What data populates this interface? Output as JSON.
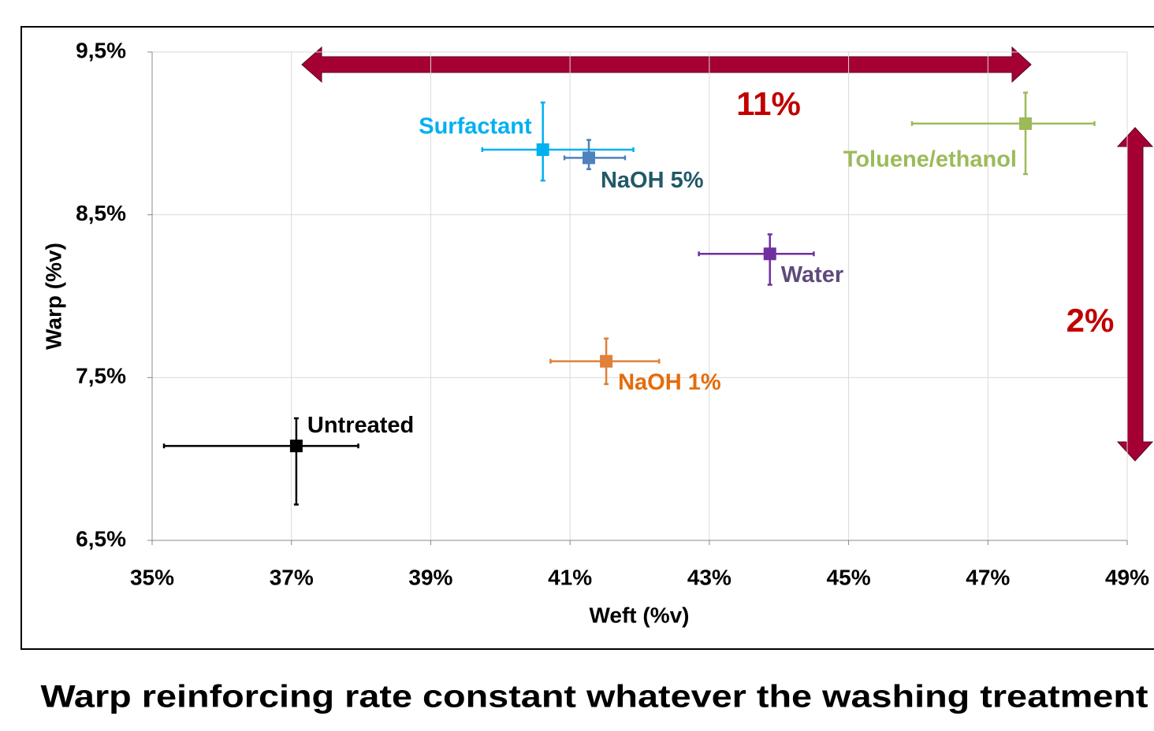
{
  "chart_data": {
    "type": "scatter",
    "title": "Warp reinforcing rate constant whatever the washing treatment",
    "x_label": "Weft (%v)",
    "y_label": "Warp (%v)",
    "xlim": [
      35,
      49
    ],
    "ylim": [
      6.5,
      9.5
    ],
    "xticks": [
      {
        "value": 35,
        "label": "35%"
      },
      {
        "value": 37,
        "label": "37%"
      },
      {
        "value": 39,
        "label": "39%"
      },
      {
        "value": 41,
        "label": "41%"
      },
      {
        "value": 43,
        "label": "43%"
      },
      {
        "value": 45,
        "label": "45%"
      },
      {
        "value": 47,
        "label": "47%"
      },
      {
        "value": 49,
        "label": "49%"
      }
    ],
    "yticks": [
      {
        "value": 6.5,
        "label": "6,5%"
      },
      {
        "value": 7.5,
        "label": "7,5%"
      },
      {
        "value": 8.5,
        "label": "8,5%"
      },
      {
        "value": 9.5,
        "label": "9,5%"
      }
    ],
    "grid": true,
    "annotations": [
      "11%",
      "2%"
    ],
    "annotation_color": "#c00000",
    "series": [
      {
        "name": "Untreated",
        "color": "#000000",
        "label_color": "#000000",
        "x": 37.07,
        "y": 7.08,
        "xerr": [
          1.9,
          0.89
        ],
        "yerr": [
          0.36,
          0.17
        ]
      },
      {
        "name": "Surfactant",
        "color": "#00b0f0",
        "label_color": "#00b0f0",
        "x": 40.61,
        "y": 8.9,
        "xerr": [
          0.87,
          1.3
        ],
        "yerr": [
          0.19,
          0.29
        ]
      },
      {
        "name": "NaOH 5%",
        "color": "#4f81bd",
        "label_color": "#215968",
        "x": 41.27,
        "y": 8.85,
        "xerr": [
          0.35,
          0.52
        ],
        "yerr": [
          0.07,
          0.11
        ]
      },
      {
        "name": "Water",
        "color": "#7030a0",
        "label_color": "#604a7b",
        "x": 43.87,
        "y": 8.26,
        "xerr": [
          1.02,
          0.63
        ],
        "yerr": [
          0.19,
          0.12
        ]
      },
      {
        "name": "NaOH 1%",
        "color": "#e0803a",
        "label_color": "#e46c0a",
        "x": 41.52,
        "y": 7.6,
        "xerr": [
          0.8,
          0.76
        ],
        "yerr": [
          0.14,
          0.14
        ]
      },
      {
        "name": "Toluene/ethanol",
        "color": "#9bbb59",
        "label_color": "#9bbb59",
        "x": 47.54,
        "y": 9.06,
        "xerr": [
          1.63,
          0.99
        ],
        "yerr": [
          0.31,
          0.19
        ]
      }
    ]
  }
}
